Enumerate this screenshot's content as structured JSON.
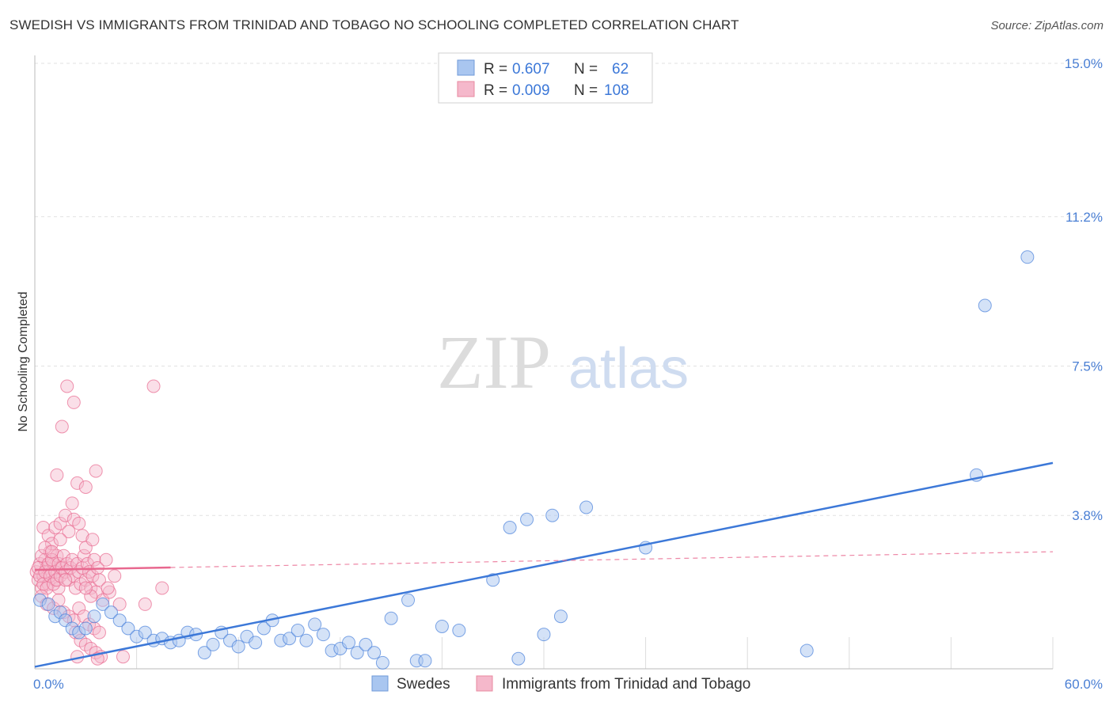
{
  "title": "SWEDISH VS IMMIGRANTS FROM TRINIDAD AND TOBAGO NO SCHOOLING COMPLETED CORRELATION CHART",
  "source": "Source: ZipAtlas.com",
  "watermark": {
    "zip": "ZIP",
    "atlas": "atlas"
  },
  "colors": {
    "blue": "#3c78d8",
    "blue_fill": "#a9c6f0",
    "pink": "#e8688f",
    "pink_fill": "#f5b8cb"
  },
  "legend": {
    "rows": [
      {
        "r_label": "R =",
        "r_value": "0.607",
        "n_label": "N =",
        "n_value": "62"
      },
      {
        "r_label": "R =",
        "r_value": "0.009",
        "n_label": "N =",
        "n_value": "108"
      }
    ]
  },
  "bottom_legend": [
    "Swedes",
    "Immigrants from Trinidad and Tobago"
  ],
  "chart_data": {
    "type": "scatter",
    "ylabel": "No Schooling Completed",
    "xlim": [
      0,
      60
    ],
    "ylim": [
      0,
      15
    ],
    "y_ticks": [
      {
        "value": 15.0,
        "label": "15.0%"
      },
      {
        "value": 11.2,
        "label": "11.2%"
      },
      {
        "value": 7.5,
        "label": "7.5%"
      },
      {
        "value": 3.8,
        "label": "3.8%"
      }
    ],
    "x_ticks": [
      {
        "value": 0,
        "label": "0.0%"
      },
      {
        "value": 60,
        "label": "60.0%"
      }
    ],
    "series": [
      {
        "name": "Swedes",
        "r": 0.607,
        "n": 62,
        "trend": {
          "x": [
            0,
            60
          ],
          "y": [
            0.05,
            5.1
          ]
        },
        "points": [
          [
            0.3,
            1.7
          ],
          [
            0.8,
            1.6
          ],
          [
            1.2,
            1.3
          ],
          [
            1.5,
            1.4
          ],
          [
            1.8,
            1.2
          ],
          [
            2.2,
            1.0
          ],
          [
            2.6,
            0.9
          ],
          [
            3.0,
            1.0
          ],
          [
            3.5,
            1.3
          ],
          [
            4.0,
            1.6
          ],
          [
            4.5,
            1.4
          ],
          [
            5.0,
            1.2
          ],
          [
            5.5,
            1.0
          ],
          [
            6.0,
            0.8
          ],
          [
            6.5,
            0.9
          ],
          [
            7.0,
            0.7
          ],
          [
            7.5,
            0.75
          ],
          [
            8.0,
            0.65
          ],
          [
            8.5,
            0.7
          ],
          [
            9.0,
            0.9
          ],
          [
            9.5,
            0.85
          ],
          [
            10.0,
            0.4
          ],
          [
            10.5,
            0.6
          ],
          [
            11.0,
            0.9
          ],
          [
            11.5,
            0.7
          ],
          [
            12.0,
            0.55
          ],
          [
            12.5,
            0.8
          ],
          [
            13.0,
            0.65
          ],
          [
            13.5,
            1.0
          ],
          [
            14.0,
            1.2
          ],
          [
            14.5,
            0.7
          ],
          [
            15.0,
            0.75
          ],
          [
            15.5,
            0.95
          ],
          [
            16.0,
            0.7
          ],
          [
            16.5,
            1.1
          ],
          [
            17.0,
            0.85
          ],
          [
            17.5,
            0.45
          ],
          [
            18.0,
            0.5
          ],
          [
            18.5,
            0.65
          ],
          [
            19.0,
            0.4
          ],
          [
            19.5,
            0.6
          ],
          [
            20.0,
            0.4
          ],
          [
            20.5,
            0.15
          ],
          [
            21.0,
            1.25
          ],
          [
            22.0,
            1.7
          ],
          [
            22.5,
            0.2
          ],
          [
            23.0,
            0.2
          ],
          [
            24.0,
            1.05
          ],
          [
            25.0,
            0.95
          ],
          [
            27.0,
            2.2
          ],
          [
            28.0,
            3.5
          ],
          [
            28.5,
            0.25
          ],
          [
            30.0,
            0.85
          ],
          [
            31.0,
            1.3
          ],
          [
            30.5,
            3.8
          ],
          [
            29.0,
            3.7
          ],
          [
            36.0,
            3.0
          ],
          [
            32.5,
            4.0
          ],
          [
            45.5,
            0.45
          ],
          [
            55.5,
            4.8
          ],
          [
            56.0,
            9.0
          ],
          [
            58.5,
            10.2
          ]
        ]
      },
      {
        "name": "Immigrants from Trinidad and Tobago",
        "r": 0.009,
        "n": 108,
        "trend": {
          "x": [
            0,
            60
          ],
          "y": [
            2.45,
            2.9
          ]
        },
        "points": [
          [
            0.1,
            2.4
          ],
          [
            0.2,
            2.2
          ],
          [
            0.3,
            2.6
          ],
          [
            0.4,
            2.0
          ],
          [
            0.5,
            2.3
          ],
          [
            0.6,
            2.7
          ],
          [
            0.7,
            2.5
          ],
          [
            0.8,
            2.1
          ],
          [
            0.9,
            2.9
          ],
          [
            1.0,
            2.4
          ],
          [
            1.1,
            2.6
          ],
          [
            1.2,
            2.2
          ],
          [
            1.3,
            2.8
          ],
          [
            1.4,
            2.0
          ],
          [
            1.5,
            2.5
          ],
          [
            0.2,
            2.5
          ],
          [
            0.3,
            2.3
          ],
          [
            0.4,
            2.8
          ],
          [
            0.5,
            2.1
          ],
          [
            0.6,
            2.4
          ],
          [
            0.7,
            2.0
          ],
          [
            0.8,
            2.6
          ],
          [
            0.9,
            2.3
          ],
          [
            1.0,
            2.7
          ],
          [
            1.1,
            2.1
          ],
          [
            1.2,
            2.4
          ],
          [
            1.3,
            2.2
          ],
          [
            1.4,
            2.6
          ],
          [
            1.5,
            2.3
          ],
          [
            1.6,
            2.5
          ],
          [
            1.7,
            2.8
          ],
          [
            1.8,
            2.4
          ],
          [
            1.9,
            2.6
          ],
          [
            2.0,
            2.2
          ],
          [
            2.1,
            2.5
          ],
          [
            2.2,
            2.7
          ],
          [
            2.3,
            2.3
          ],
          [
            2.4,
            2.0
          ],
          [
            2.5,
            2.6
          ],
          [
            2.6,
            2.4
          ],
          [
            2.7,
            2.1
          ],
          [
            2.8,
            2.5
          ],
          [
            2.9,
            2.8
          ],
          [
            3.0,
            2.2
          ],
          [
            3.1,
            2.6
          ],
          [
            3.2,
            2.4
          ],
          [
            3.3,
            2.0
          ],
          [
            3.4,
            2.3
          ],
          [
            3.5,
            2.7
          ],
          [
            3.6,
            1.9
          ],
          [
            3.7,
            2.5
          ],
          [
            3.8,
            2.2
          ],
          [
            0.5,
            3.5
          ],
          [
            0.8,
            3.3
          ],
          [
            1.0,
            3.1
          ],
          [
            1.2,
            3.5
          ],
          [
            1.5,
            3.6
          ],
          [
            1.8,
            3.8
          ],
          [
            2.0,
            3.4
          ],
          [
            2.3,
            3.7
          ],
          [
            2.6,
            3.6
          ],
          [
            2.8,
            3.3
          ],
          [
            3.0,
            3.0
          ],
          [
            3.4,
            3.2
          ],
          [
            0.6,
            3.0
          ],
          [
            1.0,
            2.9
          ],
          [
            1.5,
            3.2
          ],
          [
            2.2,
            4.1
          ],
          [
            1.3,
            4.8
          ],
          [
            2.5,
            4.6
          ],
          [
            3.0,
            4.5
          ],
          [
            3.6,
            4.9
          ],
          [
            1.6,
            6.0
          ],
          [
            2.3,
            6.6
          ],
          [
            1.9,
            7.0
          ],
          [
            7.0,
            7.0
          ],
          [
            0.4,
            1.8
          ],
          [
            0.7,
            1.6
          ],
          [
            1.1,
            1.5
          ],
          [
            1.4,
            1.7
          ],
          [
            1.7,
            1.4
          ],
          [
            2.0,
            1.3
          ],
          [
            2.3,
            1.2
          ],
          [
            2.6,
            1.5
          ],
          [
            2.9,
            1.3
          ],
          [
            3.2,
            1.1
          ],
          [
            3.5,
            1.0
          ],
          [
            3.8,
            0.9
          ],
          [
            4.0,
            1.7
          ],
          [
            4.4,
            1.9
          ],
          [
            5.0,
            1.6
          ],
          [
            6.5,
            1.6
          ],
          [
            7.5,
            2.0
          ],
          [
            2.4,
            0.9
          ],
          [
            2.7,
            0.7
          ],
          [
            3.0,
            0.6
          ],
          [
            3.3,
            0.5
          ],
          [
            3.6,
            0.4
          ],
          [
            3.9,
            0.3
          ],
          [
            2.5,
            0.3
          ],
          [
            3.7,
            0.25
          ],
          [
            5.2,
            0.3
          ],
          [
            3.3,
            1.8
          ],
          [
            3.0,
            2.0
          ],
          [
            4.2,
            2.7
          ],
          [
            4.7,
            2.3
          ],
          [
            4.3,
            2.0
          ],
          [
            1.8,
            2.2
          ]
        ]
      }
    ]
  }
}
